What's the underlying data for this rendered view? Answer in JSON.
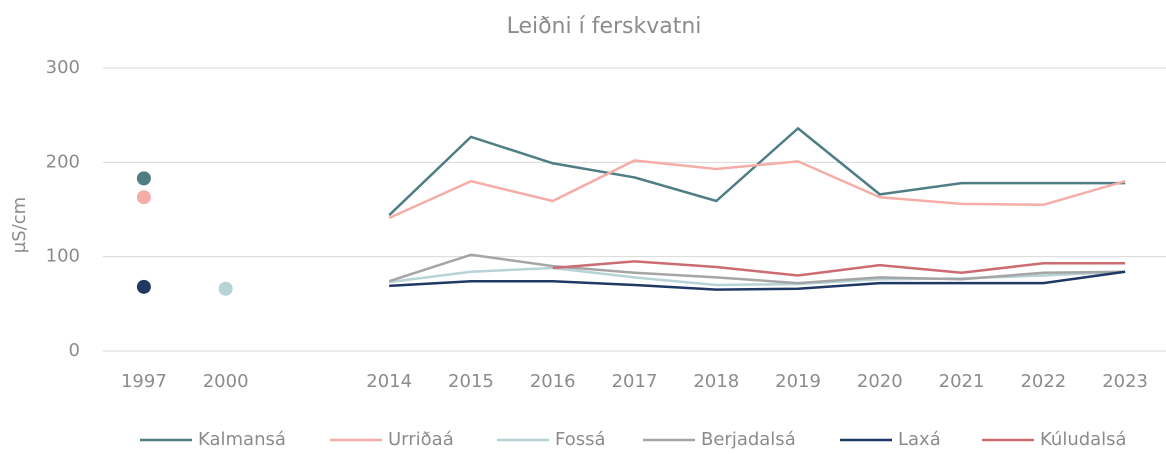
{
  "chart_data": {
    "type": "line",
    "title": "Leiðni í ferskvatni",
    "y_label": "µS/cm",
    "categories": [
      "1997",
      "2000",
      null,
      "2014",
      "2015",
      "2016",
      "2017",
      "2018",
      "2019",
      "2020",
      "2021",
      "2022",
      "2023"
    ],
    "series": [
      {
        "name": "Kalmansá",
        "color": "#4e7e84",
        "values": [
          183,
          null,
          null,
          144,
          227,
          199,
          184,
          159,
          236,
          166,
          178,
          178,
          178
        ]
      },
      {
        "name": "Urriðaá",
        "color": "#f4aea7",
        "values": [
          163,
          null,
          null,
          141,
          180,
          159,
          202,
          193,
          201,
          163,
          156,
          155,
          180
        ]
      },
      {
        "name": "Fossá",
        "color": "#b7d3d6",
        "values": [
          null,
          66,
          null,
          73,
          84,
          88,
          78,
          70,
          71,
          76,
          77,
          80,
          84
        ]
      },
      {
        "name": "Berjadalsá",
        "color": "#a5a5a5",
        "values": [
          null,
          null,
          null,
          74,
          102,
          90,
          83,
          78,
          72,
          78,
          76,
          83,
          84
        ]
      },
      {
        "name": "Laxá",
        "color": "#1f3864",
        "values": [
          68,
          null,
          null,
          69,
          74,
          74,
          70,
          65,
          66,
          72,
          72,
          72,
          84
        ]
      },
      {
        "name": "Kúludalsá",
        "color": "#cd6b72",
        "values": [
          null,
          null,
          null,
          null,
          null,
          88,
          95,
          89,
          80,
          91,
          83,
          93,
          93
        ]
      }
    ],
    "ylim": [
      0,
      300
    ],
    "yticks": [
      0,
      100,
      200,
      300
    ],
    "grid": true,
    "legend": "bottom"
  }
}
